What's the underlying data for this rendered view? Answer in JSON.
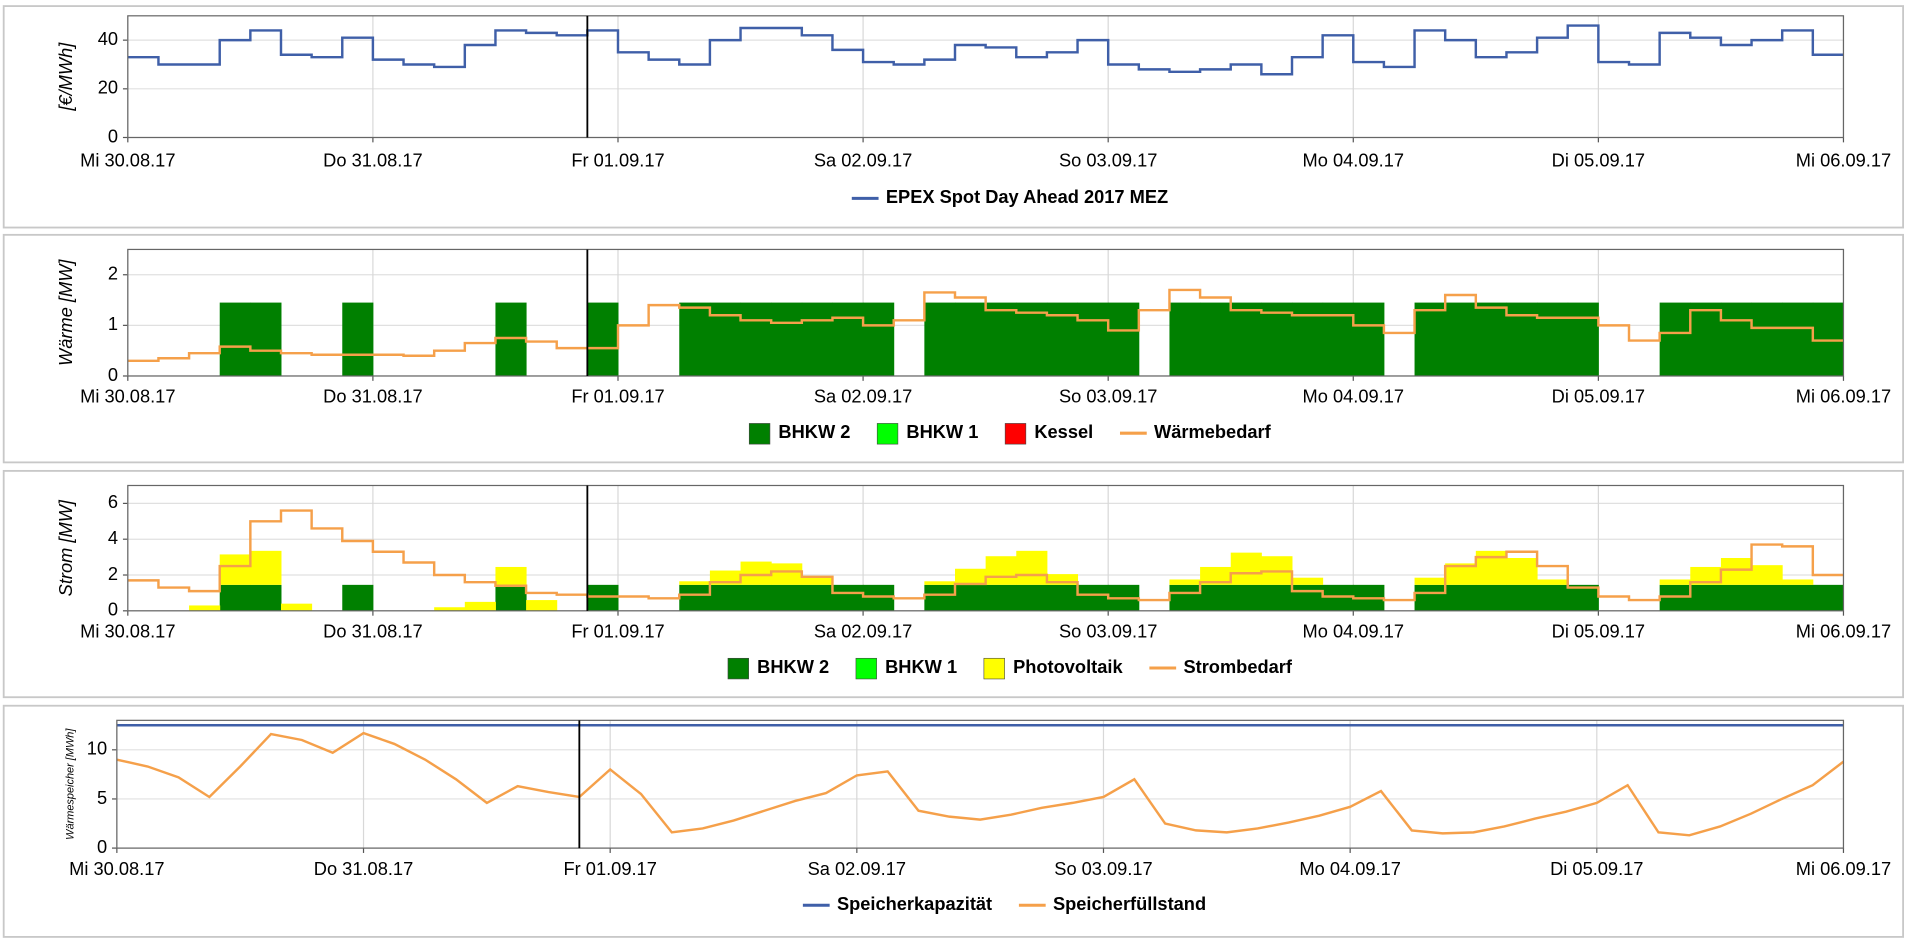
{
  "chart_data": [
    {
      "type": "line",
      "ylabel": "[€/MWh]",
      "xlim": [
        0,
        168
      ],
      "xticks": [
        {
          "value": 0,
          "label": "Mi 30.08.17"
        },
        {
          "value": 24,
          "label": "Do 31.08.17"
        },
        {
          "value": 48,
          "label": "Fr 01.09.17"
        },
        {
          "value": 72,
          "label": "Sa 02.09.17"
        },
        {
          "value": 96,
          "label": "So 03.09.17"
        },
        {
          "value": 120,
          "label": "Mo 04.09.17"
        },
        {
          "value": 144,
          "label": "Di 05.09.17"
        },
        {
          "value": 168,
          "label": "Mi 06.09.17"
        }
      ],
      "ylim": [
        0,
        50
      ],
      "yticks": [
        0,
        20,
        40
      ],
      "grid": true,
      "cursor_x": 45,
      "series": [
        {
          "name": "EPEX Spot Day Ahead 2017 MEZ",
          "style": "step",
          "color": "#3f5fa8",
          "values": [
            33,
            30,
            30,
            40,
            44,
            34,
            33,
            41,
            32,
            30,
            29,
            38,
            44,
            43,
            42,
            44,
            35,
            32,
            30,
            40,
            45,
            45,
            42,
            36,
            31,
            30,
            32,
            38,
            37,
            33,
            35,
            40,
            30,
            28,
            27,
            28,
            30,
            26,
            33,
            42,
            31,
            29,
            44,
            40,
            33,
            35,
            41,
            46,
            31,
            30,
            43,
            41,
            38,
            40,
            44,
            34
          ]
        }
      ]
    },
    {
      "type": "area",
      "ylabel": "Wärme [MW]",
      "xlim": [
        0,
        168
      ],
      "xticks": [
        {
          "value": 0,
          "label": "Mi 30.08.17"
        },
        {
          "value": 24,
          "label": "Do 31.08.17"
        },
        {
          "value": 48,
          "label": "Fr 01.09.17"
        },
        {
          "value": 72,
          "label": "Sa 02.09.17"
        },
        {
          "value": 96,
          "label": "So 03.09.17"
        },
        {
          "value": 120,
          "label": "Mo 04.09.17"
        },
        {
          "value": 144,
          "label": "Di 05.09.17"
        },
        {
          "value": 168,
          "label": "Mi 06.09.17"
        }
      ],
      "ylim": [
        0,
        2.5
      ],
      "yticks": [
        0,
        1,
        2
      ],
      "grid": true,
      "cursor_x": 45,
      "series": [
        {
          "name": "BHKW 2",
          "style": "area",
          "color": "#008000",
          "values": [
            0,
            0,
            0,
            1.45,
            1.45,
            0,
            0,
            1.45,
            0,
            0,
            0,
            0,
            1.45,
            0,
            0,
            1.45,
            0,
            0,
            1.45,
            1.45,
            1.45,
            1.45,
            1.45,
            1.45,
            1.45,
            0,
            1.45,
            1.45,
            1.45,
            1.45,
            1.45,
            1.45,
            1.45,
            0,
            1.45,
            1.45,
            1.45,
            1.45,
            1.45,
            1.45,
            1.45,
            0,
            1.45,
            1.45,
            1.45,
            1.45,
            1.45,
            1.45,
            0,
            0,
            1.45,
            1.45,
            1.45,
            1.45,
            1.45,
            1.45
          ]
        },
        {
          "name": "BHKW 1",
          "style": "area",
          "color": "#00ff00",
          "values": [
            0,
            0,
            0,
            0,
            0,
            0,
            0,
            0,
            0,
            0,
            0,
            0,
            0,
            0,
            0,
            0,
            0,
            0,
            0,
            0,
            0,
            0,
            0,
            0,
            0,
            0,
            0,
            0,
            0,
            0,
            0,
            0,
            0,
            0,
            0,
            0,
            0,
            0,
            0,
            0,
            0,
            0,
            0,
            0,
            0,
            0,
            0,
            0,
            0,
            0,
            0,
            0,
            0,
            0,
            0,
            0
          ]
        },
        {
          "name": "Kessel",
          "style": "area",
          "color": "#ff0000",
          "values": [
            0,
            0,
            0,
            0,
            0,
            0,
            0,
            0,
            0,
            0,
            0,
            0,
            0,
            0,
            0,
            0,
            0,
            0,
            0,
            0,
            0,
            0,
            0,
            0,
            0,
            0,
            0,
            0,
            0,
            0,
            0,
            0,
            0,
            0,
            0,
            0,
            0,
            0,
            0,
            0,
            0,
            0,
            0,
            0,
            0,
            0,
            0,
            0,
            0,
            0,
            0,
            0,
            0,
            0,
            0,
            0
          ]
        },
        {
          "name": "Wärmebedarf",
          "style": "step",
          "color": "#f5a04a",
          "values": [
            0.3,
            0.35,
            0.45,
            0.58,
            0.5,
            0.45,
            0.42,
            0.42,
            0.42,
            0.4,
            0.5,
            0.65,
            0.75,
            0.68,
            0.55,
            0.55,
            1.0,
            1.4,
            1.35,
            1.2,
            1.1,
            1.05,
            1.1,
            1.15,
            1.0,
            1.1,
            1.65,
            1.55,
            1.3,
            1.25,
            1.2,
            1.1,
            0.9,
            1.3,
            1.7,
            1.55,
            1.3,
            1.25,
            1.2,
            1.2,
            1.0,
            0.85,
            1.3,
            1.6,
            1.35,
            1.2,
            1.15,
            1.15,
            1.0,
            0.7,
            0.85,
            1.3,
            1.1,
            0.95,
            0.95,
            0.7
          ]
        }
      ]
    },
    {
      "type": "area",
      "ylabel": "Strom [MW]",
      "xlim": [
        0,
        168
      ],
      "xticks": [
        {
          "value": 0,
          "label": "Mi 30.08.17"
        },
        {
          "value": 24,
          "label": "Do 31.08.17"
        },
        {
          "value": 48,
          "label": "Fr 01.09.17"
        },
        {
          "value": 72,
          "label": "Sa 02.09.17"
        },
        {
          "value": 96,
          "label": "So 03.09.17"
        },
        {
          "value": 120,
          "label": "Mo 04.09.17"
        },
        {
          "value": 144,
          "label": "Di 05.09.17"
        },
        {
          "value": 168,
          "label": "Mi 06.09.17"
        }
      ],
      "ylim": [
        0,
        7
      ],
      "yticks": [
        0,
        2,
        4,
        6
      ],
      "grid": true,
      "cursor_x": 45,
      "series": [
        {
          "name": "BHKW 2",
          "style": "area",
          "color": "#008000",
          "values": [
            0,
            0,
            0,
            1.45,
            1.45,
            0,
            0,
            1.45,
            0,
            0,
            0,
            0,
            1.45,
            0,
            0,
            1.45,
            0,
            0,
            1.45,
            1.45,
            1.45,
            1.45,
            1.45,
            1.45,
            1.45,
            0,
            1.45,
            1.45,
            1.45,
            1.45,
            1.45,
            1.45,
            1.45,
            0,
            1.45,
            1.45,
            1.45,
            1.45,
            1.45,
            1.45,
            1.45,
            0,
            1.45,
            1.45,
            1.45,
            1.45,
            1.45,
            1.45,
            0,
            0,
            1.45,
            1.45,
            1.45,
            1.45,
            1.45,
            1.45
          ]
        },
        {
          "name": "BHKW 1",
          "style": "area",
          "color": "#00ff00",
          "values": [
            0,
            0,
            0,
            0,
            0,
            0,
            0,
            0,
            0,
            0,
            0,
            0,
            0,
            0,
            0,
            0,
            0,
            0,
            0,
            0,
            0,
            0,
            0,
            0,
            0,
            0,
            0,
            0,
            0,
            0,
            0,
            0,
            0,
            0,
            0,
            0,
            0,
            0,
            0,
            0,
            0,
            0,
            0,
            0,
            0,
            0,
            0,
            0,
            0,
            0,
            0,
            0,
            0,
            0,
            0,
            0
          ]
        },
        {
          "name": "Photovoltaik",
          "style": "area",
          "color": "#ffff00",
          "values": [
            0,
            0,
            0.3,
            1.7,
            1.9,
            0.4,
            0,
            0,
            0,
            0,
            0.2,
            0.5,
            1.0,
            0.6,
            0,
            0,
            0,
            0,
            0.2,
            0.8,
            1.3,
            1.2,
            0.5,
            0,
            0,
            0,
            0.2,
            0.9,
            1.6,
            1.9,
            0.6,
            0,
            0,
            0,
            0.3,
            1.0,
            1.8,
            1.6,
            0.4,
            0,
            0,
            0,
            0.4,
            1.2,
            1.9,
            1.5,
            0.3,
            0,
            0,
            0,
            0.3,
            1.0,
            1.5,
            1.1,
            0.3,
            0
          ]
        },
        {
          "name": "Strombedarf",
          "style": "step",
          "color": "#f5a04a",
          "values": [
            1.7,
            1.3,
            1.1,
            2.5,
            5.0,
            5.6,
            4.6,
            3.9,
            3.3,
            2.7,
            2.0,
            1.6,
            1.4,
            1.0,
            0.9,
            0.8,
            0.8,
            0.7,
            0.9,
            1.6,
            2.0,
            2.2,
            1.9,
            1.0,
            0.8,
            0.7,
            0.9,
            1.5,
            1.9,
            2.0,
            1.6,
            0.9,
            0.7,
            0.6,
            1.0,
            1.6,
            2.1,
            2.2,
            1.1,
            0.8,
            0.7,
            0.6,
            1.0,
            2.5,
            3.0,
            3.3,
            2.5,
            1.3,
            0.8,
            0.6,
            0.8,
            1.6,
            2.3,
            3.7,
            3.6,
            2.0
          ]
        }
      ]
    },
    {
      "type": "line",
      "ylabel": "Wärmespeicher [MWh]",
      "xlim": [
        0,
        168
      ],
      "xticks": [
        {
          "value": 0,
          "label": "Mi 30.08.17"
        },
        {
          "value": 24,
          "label": "Do 31.08.17"
        },
        {
          "value": 48,
          "label": "Fr 01.09.17"
        },
        {
          "value": 72,
          "label": "Sa 02.09.17"
        },
        {
          "value": 96,
          "label": "So 03.09.17"
        },
        {
          "value": 120,
          "label": "Mo 04.09.17"
        },
        {
          "value": 144,
          "label": "Di 05.09.17"
        },
        {
          "value": 168,
          "label": "Mi 06.09.17"
        }
      ],
      "ylim": [
        0,
        13
      ],
      "yticks": [
        0,
        5,
        10
      ],
      "grid": true,
      "cursor_x": 45,
      "series": [
        {
          "name": "Speicherkapazität",
          "style": "line",
          "color": "#3f5fa8",
          "values": [
            12.5,
            12.5
          ]
        },
        {
          "name": "Speicherfüllstand",
          "style": "line",
          "color": "#f5a04a",
          "values": [
            9,
            8.3,
            7.2,
            5.2,
            8.3,
            11.6,
            11.0,
            9.7,
            11.7,
            10.6,
            9.0,
            7.0,
            4.6,
            6.3,
            5.7,
            5.2,
            8.0,
            5.5,
            1.6,
            2.0,
            2.8,
            3.8,
            4.8,
            5.6,
            7.4,
            7.8,
            3.8,
            3.2,
            2.9,
            3.4,
            4.1,
            4.6,
            5.2,
            7.0,
            2.5,
            1.8,
            1.6,
            2.0,
            2.6,
            3.3,
            4.2,
            5.8,
            1.8,
            1.5,
            1.6,
            2.2,
            3.0,
            3.7,
            4.6,
            6.4,
            1.6,
            1.3,
            2.2,
            3.5,
            5.0,
            6.4,
            8.8
          ]
        }
      ]
    }
  ]
}
